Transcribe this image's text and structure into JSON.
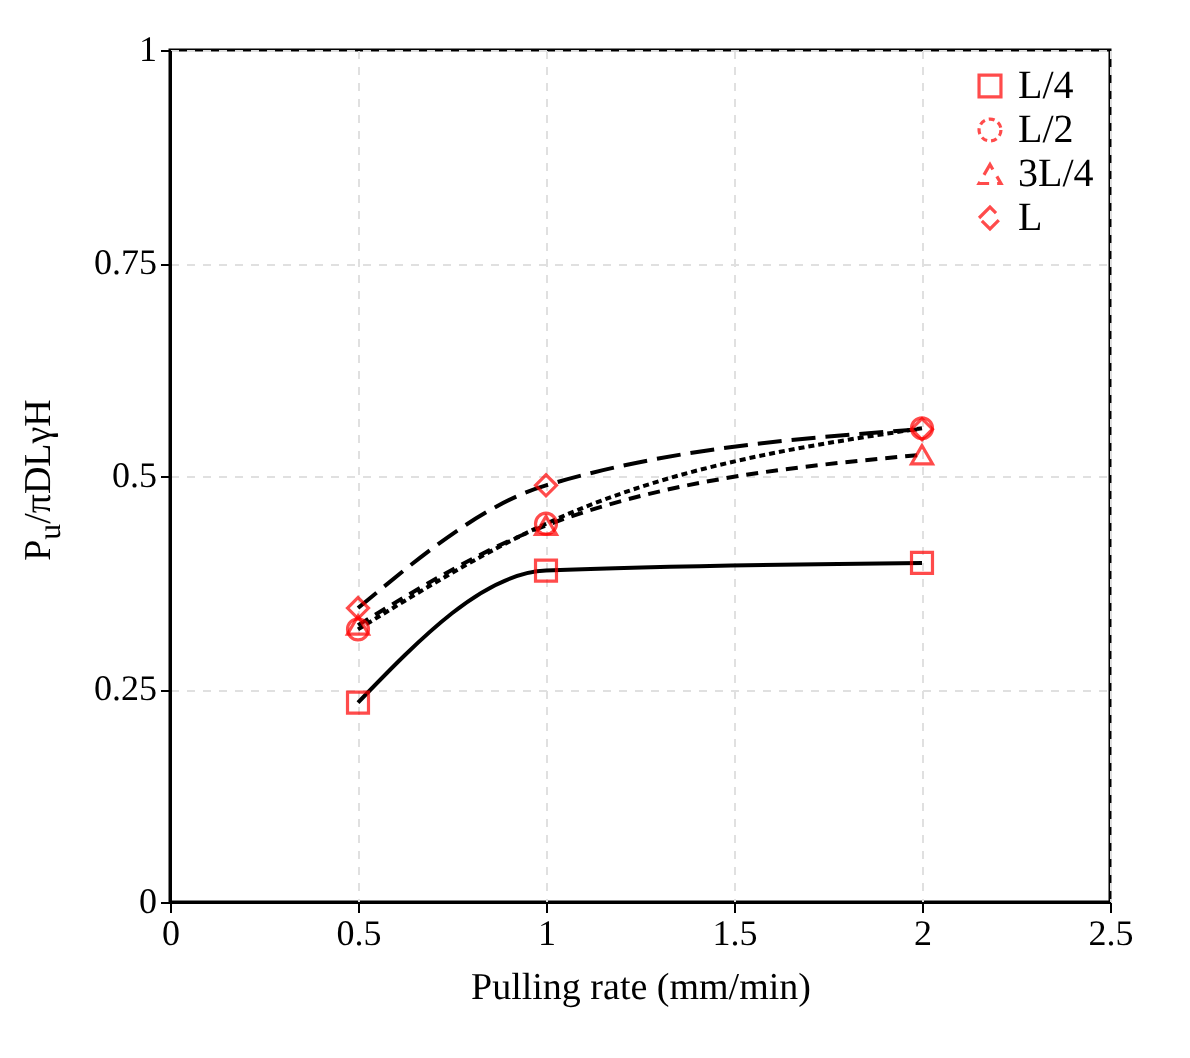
{
  "chart_data": {
    "type": "line",
    "xlabel": "Pulling rate (mm/min)",
    "ylabel": "P$_{u}$/πDLγH",
    "x": [
      0.5,
      1,
      2
    ],
    "xlim": [
      0,
      2.5
    ],
    "xticks": [
      0,
      0.5,
      1,
      1.5,
      2,
      2.5
    ],
    "ylim": [
      0,
      1
    ],
    "yticks": [
      0,
      0.25,
      0.5,
      0.75,
      1
    ],
    "grid": true,
    "legend": "top right",
    "series": [
      {
        "name": "L/4",
        "color": "#ff0000",
        "marker": "square",
        "line_style": "solid",
        "values": [
          0.234,
          0.389,
          0.398
        ]
      },
      {
        "name": "L/2",
        "color": "#ff0000",
        "marker": "circle",
        "line_style": "dotted",
        "values": [
          0.32,
          0.444,
          0.556
        ]
      },
      {
        "name": "3L/4",
        "color": "#ff0000",
        "marker": "triangle",
        "line_style": "dashed",
        "values": [
          0.325,
          0.442,
          0.525
        ]
      },
      {
        "name": "L",
        "color": "#ff0000",
        "marker": "diamond",
        "line_style": "dashed",
        "values": [
          0.345,
          0.489,
          0.555
        ]
      }
    ]
  }
}
